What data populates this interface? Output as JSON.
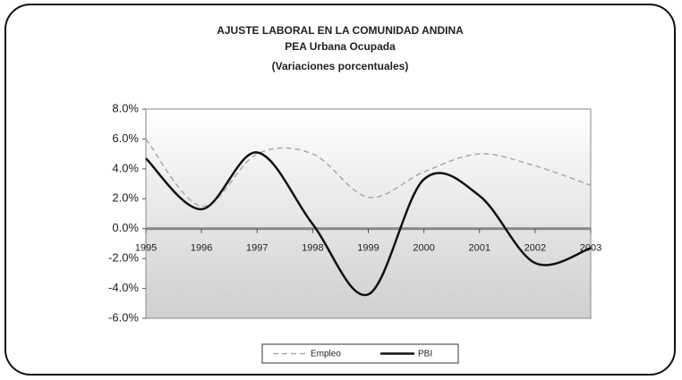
{
  "chart_data": {
    "type": "line",
    "title": "AJUSTE LABORAL EN LA COMUNIDAD ANDINA",
    "subtitle": "PEA Urbana Ocupada",
    "subtitle2": "(Variaciones porcentuales)",
    "categories": [
      "1995",
      "1996",
      "1997",
      "1998",
      "1999",
      "2000",
      "2001",
      "2002",
      "2003"
    ],
    "series": [
      {
        "name": "Empleo",
        "color": "#aaaaaa",
        "dash": true,
        "values": [
          6.0,
          1.5,
          5.0,
          5.0,
          2.1,
          3.8,
          5.0,
          4.2,
          2.9
        ]
      },
      {
        "name": "PBI",
        "color": "#111111",
        "dash": false,
        "values": [
          4.7,
          1.3,
          5.1,
          0.3,
          -4.4,
          3.3,
          2.2,
          -2.3,
          -1.3
        ]
      }
    ],
    "ylim": [
      -6,
      8
    ],
    "yticks": [
      {
        "value": -6,
        "label": "-6.0%"
      },
      {
        "value": -4,
        "label": "-4.0%"
      },
      {
        "value": -2,
        "label": "-2.0%"
      },
      {
        "value": 0,
        "label": "0.0%"
      },
      {
        "value": 2,
        "label": "2.0%"
      },
      {
        "value": 4,
        "label": "4.0%"
      },
      {
        "value": 6,
        "label": "6.0%"
      },
      {
        "value": 8,
        "label": "8.0%"
      }
    ],
    "legend": "bottom"
  }
}
